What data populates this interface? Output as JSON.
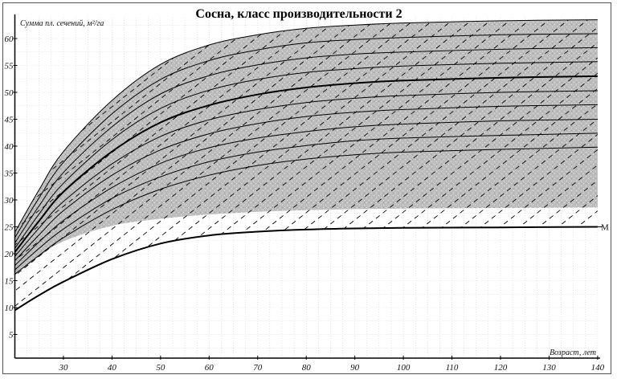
{
  "chart_data": {
    "type": "line",
    "title": "Сосна, класс производительности 2",
    "xlabel": "Возраст, лет",
    "ylabel": "Сумма пл. сечений, м²/га",
    "xlim": [
      20,
      140
    ],
    "ylim": [
      0,
      64
    ],
    "xticks": [
      30,
      40,
      50,
      60,
      70,
      80,
      90,
      100,
      110,
      120,
      130,
      140
    ],
    "yticks": [
      5,
      10,
      15,
      20,
      25,
      30,
      35,
      40,
      45,
      50,
      55,
      60
    ],
    "grid": true,
    "x": [
      20,
      25,
      30,
      40,
      50,
      60,
      70,
      80,
      90,
      100,
      120,
      140
    ],
    "series": [
      {
        "values": [
          24.0,
          31.9,
          39.0,
          48.5,
          55.2,
          58.8,
          60.7,
          61.9,
          62.5,
          62.9,
          63.3,
          63.5
        ]
      },
      {
        "values": [
          23.0,
          30.4,
          37.0,
          46.0,
          52.4,
          55.9,
          57.9,
          59.2,
          59.8,
          60.2,
          60.7,
          60.9
        ]
      },
      {
        "values": [
          22.0,
          28.9,
          35.1,
          43.6,
          49.7,
          53.1,
          55.1,
          56.4,
          57.1,
          57.5,
          58.0,
          58.3
        ]
      },
      {
        "values": [
          21.0,
          27.4,
          33.1,
          41.2,
          47.0,
          50.4,
          52.4,
          53.7,
          54.4,
          54.9,
          55.4,
          55.7
        ]
      },
      {
        "values": [
          20.3,
          26.1,
          31.5,
          39.0,
          44.4,
          47.6,
          49.6,
          50.9,
          51.7,
          52.2,
          52.7,
          53.0
        ],
        "emphasis": "bold"
      },
      {
        "values": [
          19.5,
          24.8,
          29.7,
          36.7,
          41.8,
          44.9,
          46.8,
          48.1,
          48.9,
          49.4,
          50.0,
          50.3
        ]
      },
      {
        "values": [
          18.7,
          23.5,
          28.0,
          34.6,
          39.3,
          42.3,
          44.2,
          45.5,
          46.3,
          46.8,
          47.4,
          47.7
        ]
      },
      {
        "values": [
          17.8,
          22.2,
          26.2,
          32.3,
          36.8,
          39.7,
          41.5,
          42.7,
          43.6,
          44.1,
          44.7,
          45.0
        ]
      },
      {
        "values": [
          17.0,
          21.0,
          24.6,
          30.3,
          34.3,
          37.1,
          38.9,
          40.1,
          41.0,
          41.5,
          42.0,
          42.4
        ]
      },
      {
        "values": [
          16.2,
          19.7,
          23.0,
          28.2,
          32.0,
          34.6,
          36.4,
          37.6,
          38.4,
          38.9,
          39.4,
          39.8
        ]
      },
      {
        "name": "M",
        "values": [
          9.5,
          12.3,
          14.8,
          19.0,
          21.9,
          23.4,
          24.1,
          24.5,
          24.7,
          24.8,
          24.9,
          25.0
        ],
        "emphasis": "bold"
      }
    ],
    "band": {
      "lower": [
        16.0,
        19.5,
        22.3,
        25.2,
        26.5,
        27.3,
        27.8,
        28.1,
        28.3,
        28.4,
        28.5,
        28.6
      ],
      "upper_series_index": 0,
      "color": "#bdbdbd"
    },
    "colors": {
      "band": "#bdbdbd",
      "lines": "#000000",
      "grid": "#cfcfcf"
    }
  }
}
